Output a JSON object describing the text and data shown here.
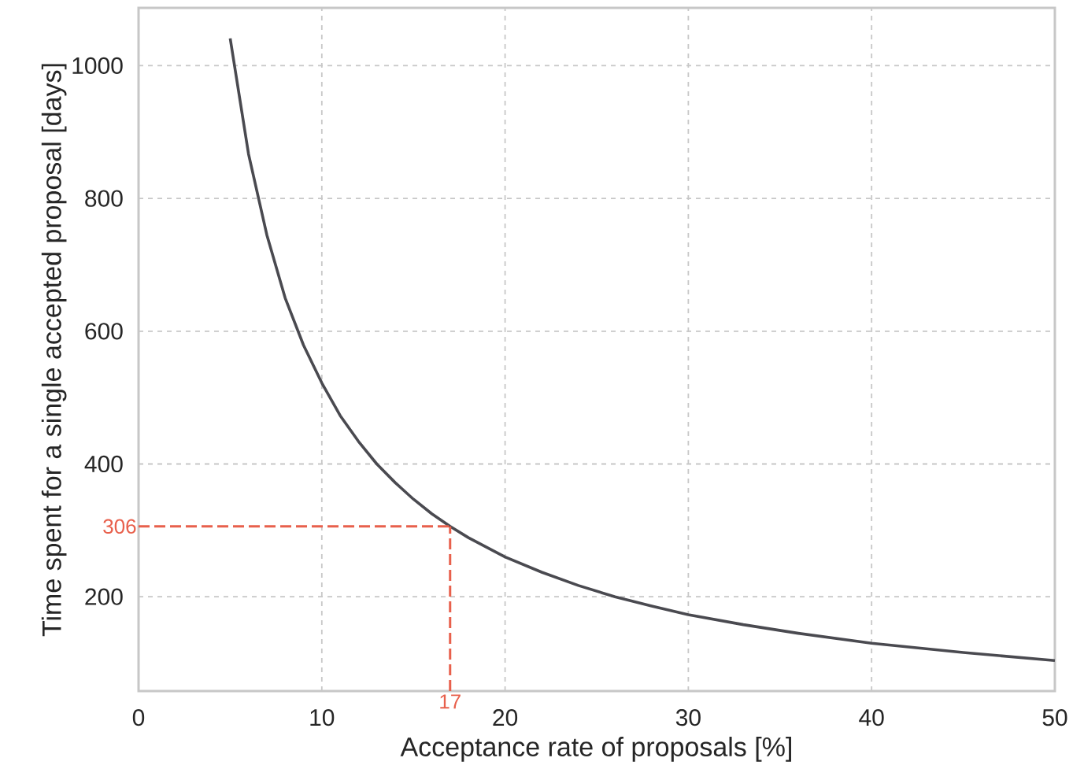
{
  "chart_data": {
    "type": "line",
    "xlabel": "Acceptance rate of proposals [%]",
    "ylabel": "Time spent for a single accepted proposal [days]",
    "xlim": [
      0,
      50
    ],
    "ylim": [
      58,
      1087
    ],
    "xticks": [
      0,
      10,
      20,
      30,
      40,
      50
    ],
    "yticks": [
      200,
      400,
      600,
      800,
      1000
    ],
    "grid": true,
    "series": [
      {
        "color": "#4a4a50",
        "x": [
          5,
          6,
          7,
          8,
          9,
          10,
          11,
          12,
          13,
          14,
          15,
          16,
          17,
          18,
          20,
          22,
          24,
          26,
          28,
          30,
          33,
          36,
          40,
          45,
          50
        ],
        "values": [
          1041,
          867,
          745,
          650,
          579,
          522,
          473,
          434,
          400,
          372,
          347,
          325,
          306,
          289,
          260,
          237,
          217,
          200,
          186,
          173,
          158,
          145,
          130,
          116,
          104
        ]
      }
    ],
    "ref_lines": [
      {
        "axis": "y",
        "value": 306,
        "label": "306",
        "color": "#e8604c",
        "line_style": "dashed"
      },
      {
        "axis": "x",
        "value": 17,
        "label": "17",
        "color": "#e8604c",
        "line_style": "dashed"
      }
    ]
  }
}
